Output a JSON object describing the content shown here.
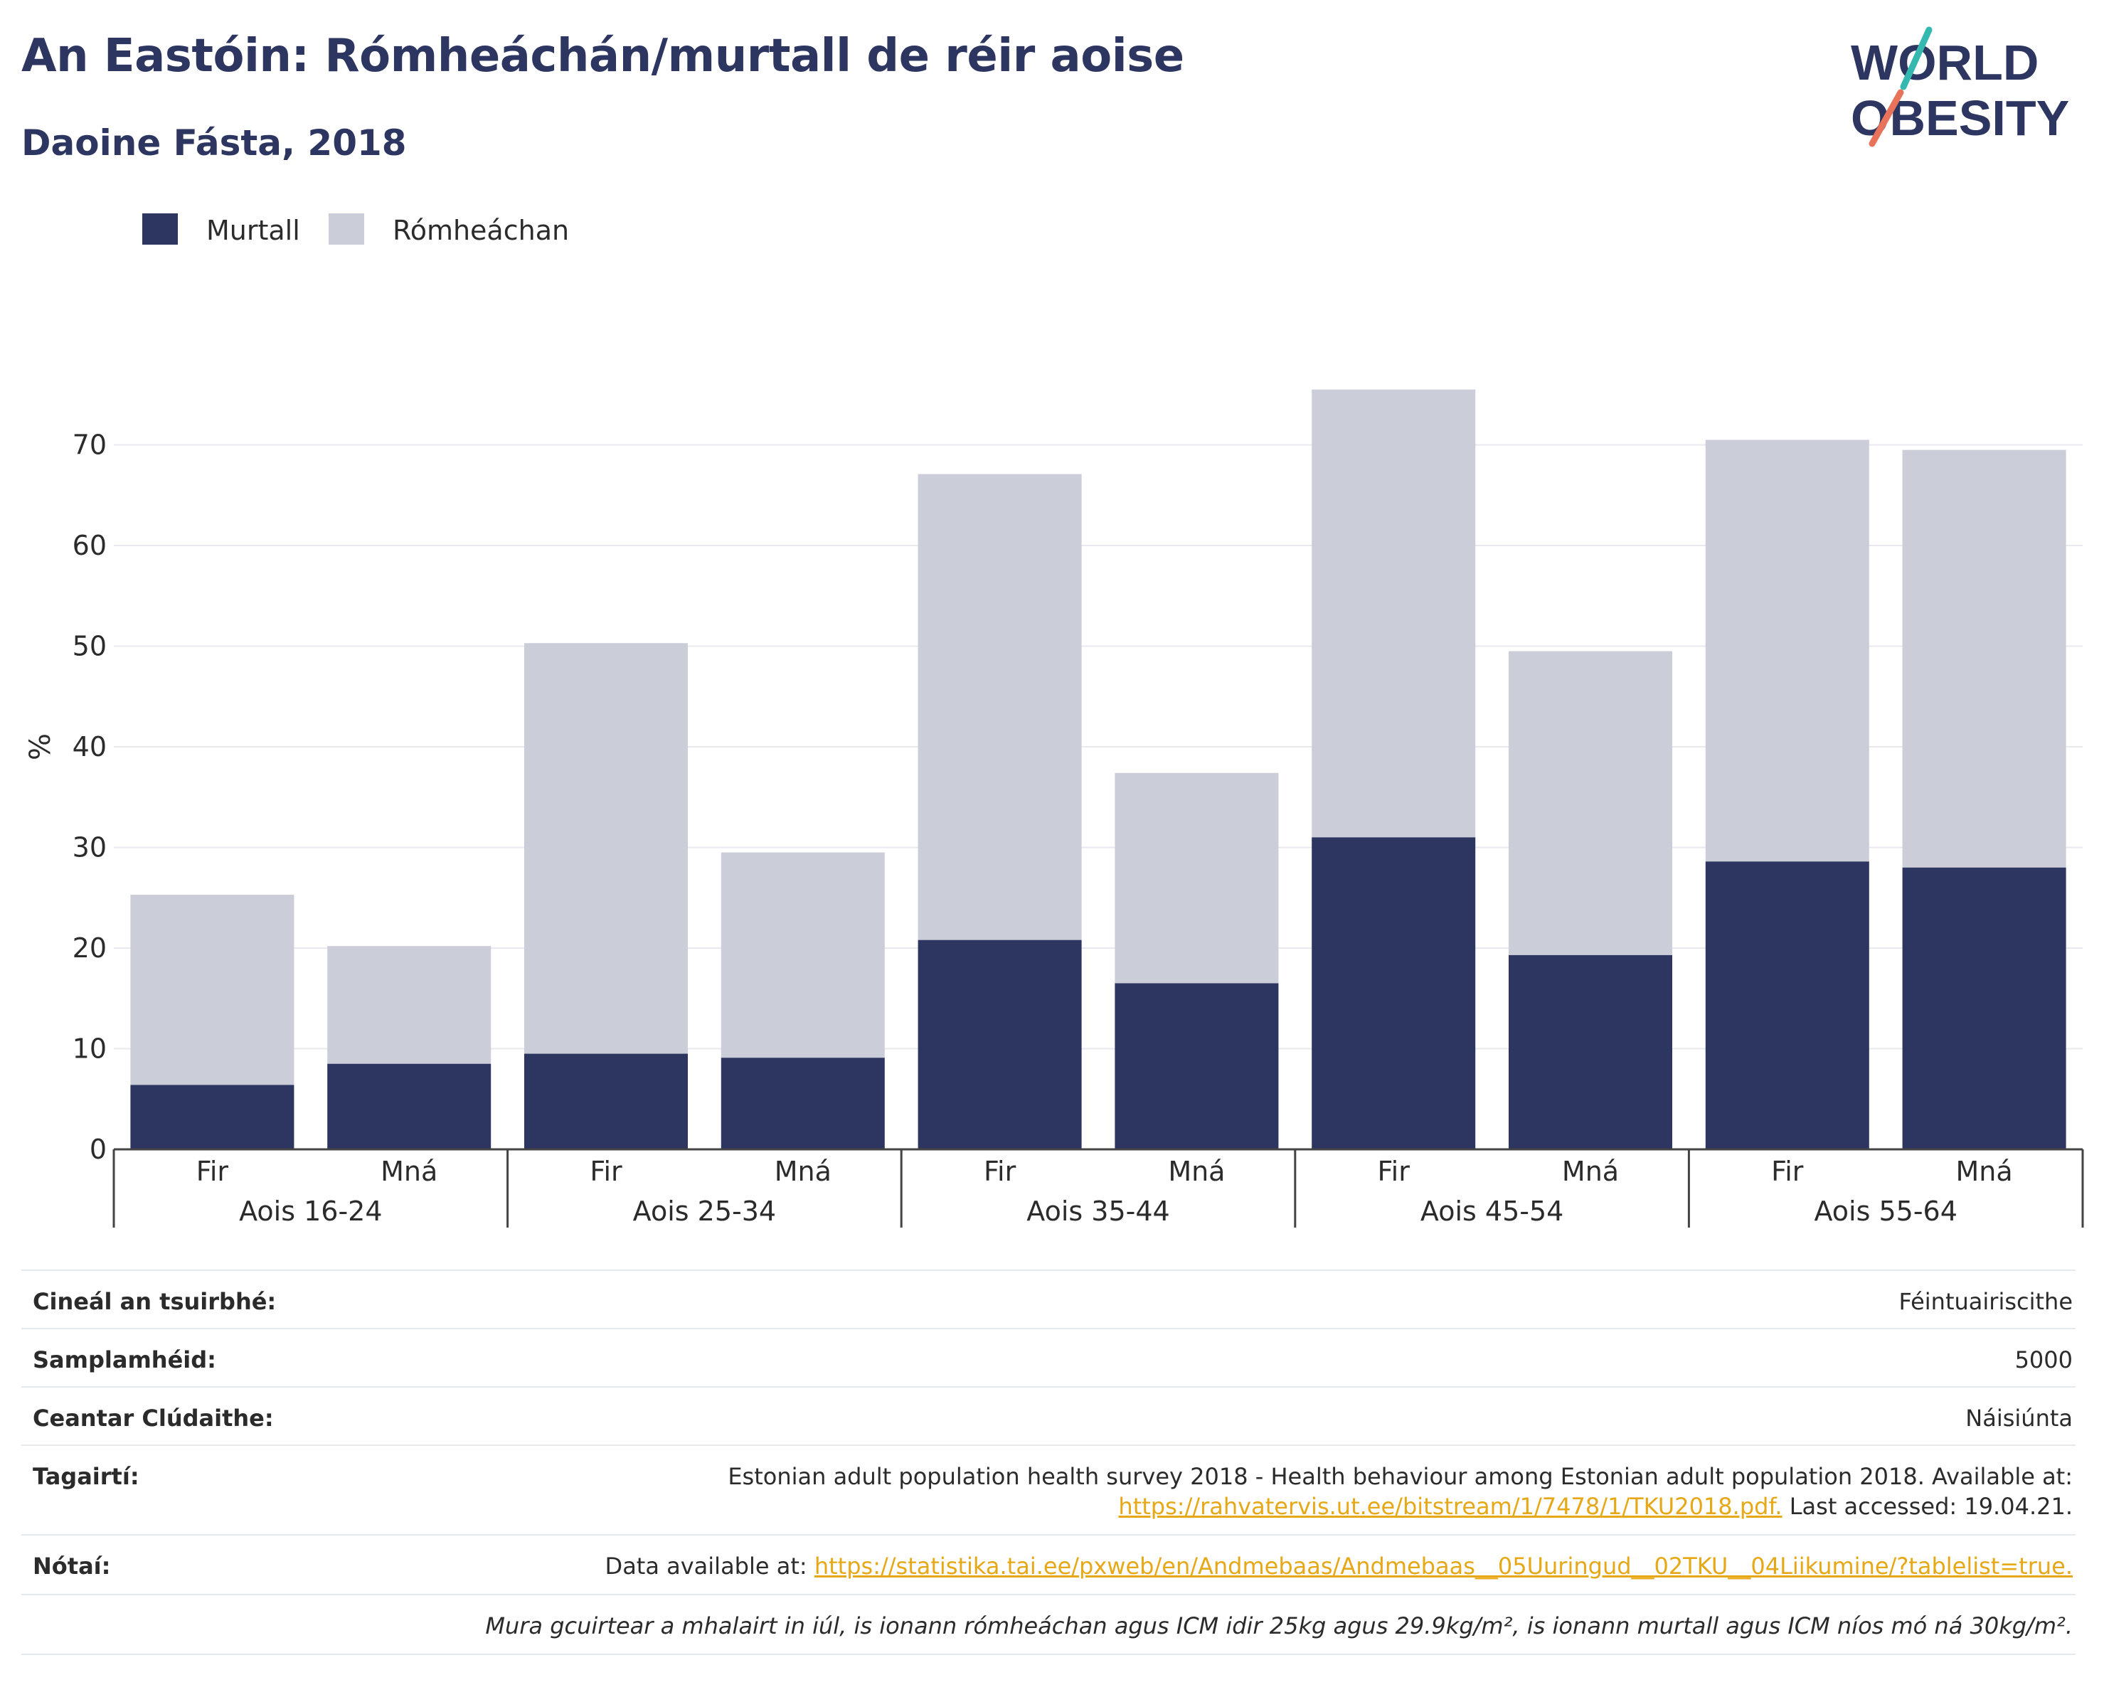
{
  "header": {
    "title": "An Eastóin: Rómheáchán/murtall de réir aoise",
    "subtitle": "Daoine Fásta, 2018"
  },
  "logo": {
    "line1": "WORLD",
    "line2": "OBESITY"
  },
  "legend": [
    {
      "label": "Murtall",
      "color": "#2d3561"
    },
    {
      "label": "Rómheáchan",
      "color": "#cbcdd9"
    }
  ],
  "chart_data": {
    "type": "bar",
    "stacked": true,
    "ylabel": "%",
    "ylim": [
      0,
      78
    ],
    "yticks": [
      0,
      10,
      20,
      30,
      40,
      50,
      60,
      70
    ],
    "grid": true,
    "legend_position": "top-left",
    "groups": [
      "Aois 16-24",
      "Aois 25-34",
      "Aois 35-44",
      "Aois 45-54",
      "Aois 55-64"
    ],
    "categories": [
      "Fir",
      "Mná",
      "Fir",
      "Mná",
      "Fir",
      "Mná",
      "Fir",
      "Mná",
      "Fir",
      "Mná"
    ],
    "series": [
      {
        "name": "Murtall",
        "color": "#2d3561",
        "values": [
          6.4,
          8.5,
          9.5,
          9.1,
          20.8,
          16.5,
          31.0,
          19.3,
          28.6,
          28.0
        ]
      },
      {
        "name": "Rómheáchan",
        "color": "#cbcdd9",
        "values": [
          18.9,
          11.7,
          40.8,
          20.4,
          46.3,
          20.9,
          44.5,
          30.2,
          41.9,
          41.5
        ]
      }
    ]
  },
  "info": {
    "survey_type": {
      "label": "Cineál an tsuirbhé:",
      "value": "Féintuairiscithe"
    },
    "sample_size": {
      "label": "Samplamhéid:",
      "value": "5000"
    },
    "coverage": {
      "label": "Ceantar Clúdaithe:",
      "value": "Náisiúnta"
    },
    "references": {
      "label": "Tagairtí:",
      "line1": "Estonian adult population health survey 2018 - Health behaviour among Estonian adult population 2018. Available at:",
      "link": "https://rahvatervis.ut.ee/bitstream/1/7478/1/TKU2018.pdf.",
      "suffix": " Last accessed: 19.04.21."
    },
    "notes": {
      "label": "Nótaí:",
      "prefix": "Data available at: ",
      "link": "https://statistika.tai.ee/pxweb/en/Andmebaas/Andmebaas__05Uuringud__02TKU__04Liikumine/?tablelist=true."
    },
    "footnote": "Mura gcuirtear a mhalairt in iúl, is ionann rómheáchan agus ICM idir 25kg agus 29.9kg/m², is ionann murtall agus ICM níos mó ná 30kg/m²."
  }
}
